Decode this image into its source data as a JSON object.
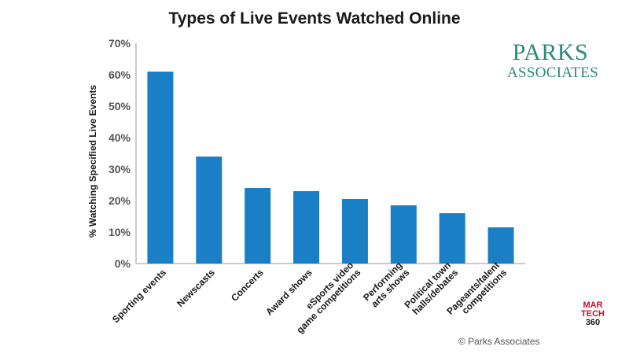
{
  "chart_data": {
    "type": "bar",
    "title": "Types of Live Events Watched Online",
    "ylabel": "% Watching Specified Live Events",
    "xlabel": "",
    "ylim": [
      0,
      70
    ],
    "yticks": [
      "0%",
      "10%",
      "20%",
      "30%",
      "40%",
      "50%",
      "60%",
      "70%"
    ],
    "categories": [
      [
        "Sporting events"
      ],
      [
        "Newscasts"
      ],
      [
        "Concerts"
      ],
      [
        "Award shows"
      ],
      [
        "eSports video",
        "game competitions"
      ],
      [
        "Performing",
        "arts shows"
      ],
      [
        "Political town",
        "halls/debates"
      ],
      [
        "Pageants/talent",
        "competitions"
      ]
    ],
    "values": [
      61,
      34,
      24,
      23,
      20.5,
      18.5,
      16,
      11.5
    ],
    "bar_color": "#1a7fc4",
    "grid": false,
    "legend": "none"
  },
  "logo": {
    "line1": "PARKS",
    "line2": "ASSOCIATES"
  },
  "copyright": "© Parks Associates",
  "badge": {
    "line1": "MAR",
    "line2": "TECH",
    "line3": "360"
  }
}
